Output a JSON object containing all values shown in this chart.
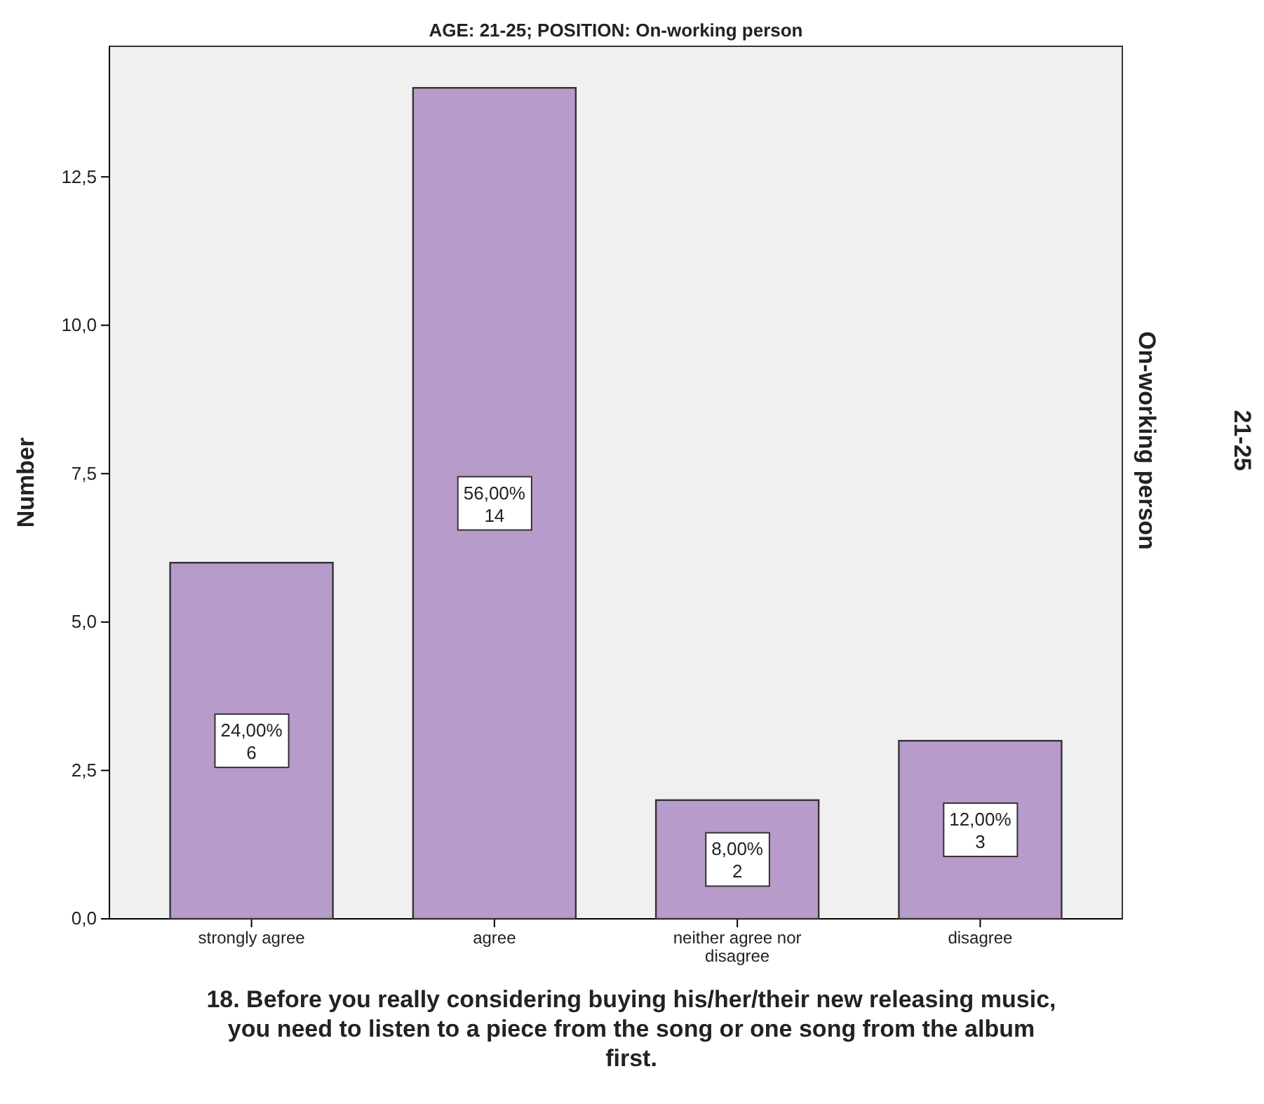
{
  "chart_data": {
    "type": "bar",
    "title": "AGE: 21-25; POSITION: On-working person",
    "xlabel": "18. Before you really considering buying his/her/their new releasing music, you need to listen to a piece from the song or one song from the album first.",
    "ylabel": "Number",
    "annotations": [
      "On-working person",
      "21-25"
    ],
    "categories": [
      "strongly agree",
      "agree",
      "neither agree nor disagree",
      "disagree"
    ],
    "values": [
      6,
      14,
      2,
      3
    ],
    "value_labels": [
      "24,00% 6",
      "56,00% 14",
      "8,00% 2",
      "12,00% 3"
    ],
    "color": "#b79bca",
    "ylim": [
      0,
      14.7
    ],
    "yticks": [
      {
        "value": 0,
        "label": "0,0"
      },
      {
        "value": 2.5,
        "label": "2,5"
      },
      {
        "value": 5,
        "label": "5,0"
      },
      {
        "value": 7.5,
        "label": "7,5"
      },
      {
        "value": 10,
        "label": "10,0"
      },
      {
        "value": 12.5,
        "label": "12,5"
      }
    ],
    "grid": false
  }
}
